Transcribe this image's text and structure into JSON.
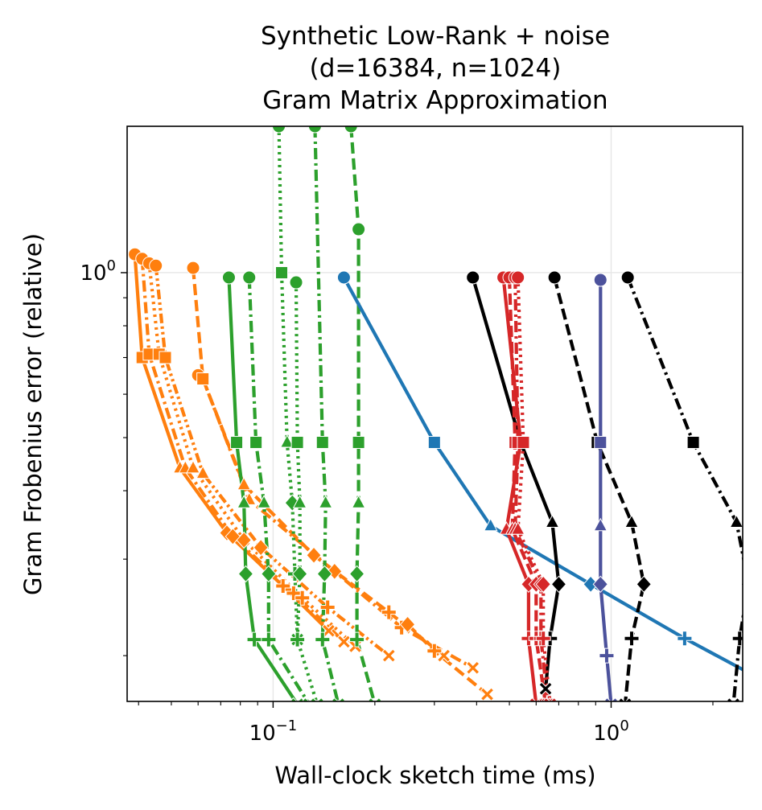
{
  "chart_data": {
    "type": "line",
    "title_lines": [
      "Synthetic Low-Rank + noise",
      "(d=16384, n=1024)",
      "Gram Matrix Approximation"
    ],
    "xlabel": "Wall-clock sketch time (ms)",
    "ylabel": "Gram Frobenius error (relative)",
    "xscale": "log",
    "yscale": "log",
    "xlim": [
      0.037,
      2.45
    ],
    "ylim": [
      0.165,
      1.85
    ],
    "x_ticks": [
      {
        "value": 0.1,
        "base": "10",
        "exp": "−1"
      },
      {
        "value": 1.0,
        "base": "10",
        "exp": "0"
      }
    ],
    "y_ticks": [
      {
        "value": 1.0,
        "base": "10",
        "exp": "0"
      }
    ],
    "grid": true,
    "colors": {
      "blue": "#1f77b4",
      "orange": "#ff7f0e",
      "green": "#2ca02c",
      "red": "#d62728",
      "purple": "#4c529c",
      "black": "#000000"
    },
    "series": [
      {
        "color": "#ff7f0e",
        "dash": "solid",
        "x": [
          0.039,
          0.041,
          0.053,
          0.073,
          0.107,
          0.146
        ],
        "y": [
          1.08,
          0.7,
          0.44,
          0.335,
          0.268,
          0.222
        ]
      },
      {
        "color": "#ff7f0e",
        "dash": "dashdot",
        "x": [
          0.041,
          0.043,
          0.055,
          0.076,
          0.115,
          0.162
        ],
        "y": [
          1.06,
          0.71,
          0.44,
          0.33,
          0.26,
          0.212
        ]
      },
      {
        "color": "#ff7f0e",
        "dash": "dotted",
        "x": [
          0.043,
          0.046,
          0.058,
          0.082,
          0.122,
          0.175
        ],
        "y": [
          1.04,
          0.71,
          0.44,
          0.325,
          0.255,
          0.208
        ]
      },
      {
        "color": "#ff7f0e",
        "dash": "dashdotdot",
        "x": [
          0.045,
          0.048,
          0.062,
          0.092,
          0.145,
          0.22
        ],
        "y": [
          1.03,
          0.7,
          0.43,
          0.315,
          0.245,
          0.2
        ]
      },
      {
        "color": "#ff7f0e",
        "dash": "dashed",
        "x": [
          0.058,
          0.062,
          0.082,
          0.132,
          0.22,
          0.32
        ],
        "y": [
          1.02,
          0.64,
          0.41,
          0.305,
          0.24,
          0.2
        ]
      },
      {
        "color": "#ff7f0e",
        "dash": "dashdot",
        "x": [
          0.06,
          0.062,
          0.085,
          0.152,
          0.24,
          0.39
        ],
        "y": [
          0.65,
          0.64,
          0.385,
          0.285,
          0.225,
          0.19
        ]
      },
      {
        "color": "#ff7f0e",
        "dash": "dashed",
        "x": [
          0.25,
          0.3,
          0.43
        ],
        "y": [
          0.228,
          0.204,
          0.17
        ]
      },
      {
        "color": "#2ca02c",
        "dash": "solid",
        "x": [
          0.074,
          0.078,
          0.082,
          0.083,
          0.088,
          0.118
        ],
        "y": [
          0.98,
          0.49,
          0.38,
          0.282,
          0.214,
          0.163
        ]
      },
      {
        "color": "#2ca02c",
        "dash": "dashdot",
        "x": [
          0.085,
          0.089,
          0.094,
          0.097,
          0.097,
          0.128
        ],
        "y": [
          0.98,
          0.49,
          0.38,
          0.282,
          0.214,
          0.163
        ]
      },
      {
        "color": "#2ca02c",
        "dash": "dotted",
        "x": [
          0.104,
          0.106,
          0.11,
          0.114,
          0.116,
          0.118
        ],
        "y": [
          1.85,
          1.0,
          0.49,
          0.38,
          0.282,
          0.214
        ]
      },
      {
        "color": "#2ca02c",
        "dash": "dotted",
        "x": [
          0.117,
          0.118,
          0.12,
          0.12,
          0.118,
          0.135
        ],
        "y": [
          0.96,
          0.49,
          0.38,
          0.282,
          0.214,
          0.163
        ]
      },
      {
        "color": "#2ca02c",
        "dash": "dashdot",
        "x": [
          0.133,
          0.14,
          0.143,
          0.142,
          0.14,
          0.156
        ],
        "y": [
          1.85,
          0.49,
          0.38,
          0.282,
          0.214,
          0.163
        ]
      },
      {
        "color": "#2ca02c",
        "dash": "dashed",
        "x": [
          0.17,
          0.179,
          0.179,
          0.179,
          0.177,
          0.177,
          0.2
        ],
        "y": [
          1.85,
          1.2,
          0.49,
          0.38,
          0.282,
          0.214,
          0.163
        ]
      },
      {
        "color": "#1f77b4",
        "dash": "solid",
        "x": [
          0.162,
          0.3,
          0.44,
          0.87,
          1.65,
          2.6
        ],
        "y": [
          0.98,
          0.49,
          0.345,
          0.27,
          0.215,
          0.185
        ]
      },
      {
        "color": "#000000",
        "dash": "solid",
        "x": [
          0.39,
          0.54,
          0.67,
          0.7,
          0.66,
          0.64
        ],
        "y": [
          0.98,
          0.49,
          0.35,
          0.27,
          0.215,
          0.174
        ]
      },
      {
        "color": "#000000",
        "dash": "dashed",
        "x": [
          0.68,
          0.91,
          1.15,
          1.25,
          1.15,
          1.1
        ],
        "y": [
          0.98,
          0.49,
          0.35,
          0.27,
          0.215,
          0.163
        ]
      },
      {
        "color": "#000000",
        "dash": "dashdot",
        "x": [
          1.12,
          1.75,
          2.35,
          2.55,
          2.4,
          2.3
        ],
        "y": [
          0.98,
          0.49,
          0.35,
          0.27,
          0.215,
          0.163
        ]
      },
      {
        "color": "#d62728",
        "dash": "solid",
        "x": [
          0.48,
          0.54,
          0.49,
          0.57,
          0.57,
          0.6
        ],
        "y": [
          0.98,
          0.49,
          0.34,
          0.27,
          0.215,
          0.163
        ]
      },
      {
        "color": "#d62728",
        "dash": "dashed",
        "x": [
          0.5,
          0.52,
          0.51,
          0.6,
          0.6,
          0.64
        ],
        "y": [
          0.98,
          0.49,
          0.34,
          0.27,
          0.215,
          0.163
        ]
      },
      {
        "color": "#d62728",
        "dash": "dashdot",
        "x": [
          0.52,
          0.53,
          0.52,
          0.62,
          0.62,
          0.65
        ],
        "y": [
          0.98,
          0.49,
          0.34,
          0.27,
          0.215,
          0.163
        ]
      },
      {
        "color": "#d62728",
        "dash": "dotted",
        "x": [
          0.53,
          0.55,
          0.53,
          0.63,
          0.63,
          0.66
        ],
        "y": [
          0.98,
          0.49,
          0.34,
          0.27,
          0.215,
          0.163
        ]
      },
      {
        "color": "#4c529c",
        "dash": "solid",
        "x": [
          0.93,
          0.93,
          0.93,
          0.93,
          0.97,
          1.0
        ],
        "y": [
          0.97,
          0.49,
          0.345,
          0.27,
          0.2,
          0.163
        ]
      }
    ]
  }
}
